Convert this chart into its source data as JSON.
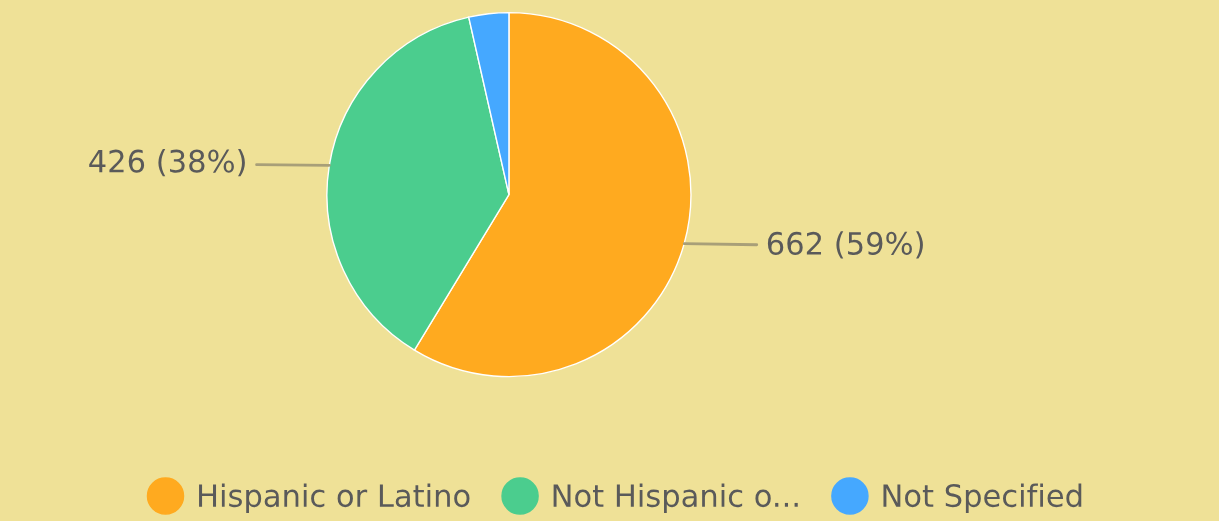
{
  "chart_data": {
    "type": "pie",
    "categories": [
      "Hispanic or Latino",
      "Not Hispanic o...",
      "Not Specified"
    ],
    "values": [
      662,
      426,
      40
    ],
    "colors": [
      "#ffaa1f",
      "#4bcd8e",
      "#45a8ff"
    ],
    "value_labels": [
      "662 (59%)",
      "426 (38%)",
      null
    ],
    "legend": "bottom"
  }
}
